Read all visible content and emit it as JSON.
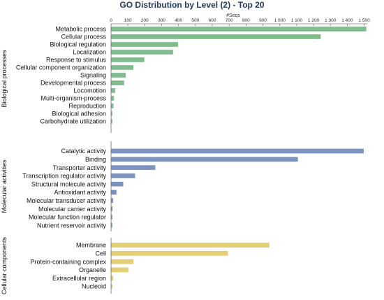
{
  "chart_data": {
    "type": "bar",
    "orientation": "horizontal",
    "title": "GO Distribution by Level (2) - Top 20",
    "xlabel": "#Seqs",
    "ylabel": "",
    "xlim": [
      0,
      1520
    ],
    "xticks": [
      "0",
      "100",
      "200",
      "300",
      "400",
      "500",
      "600",
      "700",
      "800",
      "900",
      "1 000",
      "1 100",
      "1 200",
      "1 300",
      "1 400",
      "1 500"
    ],
    "grid": false,
    "groups": [
      {
        "name": "Biological processes",
        "color": "#7dbf8a",
        "categories": [
          "Metabolic process",
          "Cellular process",
          "Biological regulation",
          "Localization",
          "Response to stimulus",
          "Cellular component organization",
          "Signaling",
          "Developmental process",
          "Locomotion",
          "Multi-organism-process",
          "Reproduction",
          "Biological adhesion",
          "Carbohydrate utilization"
        ],
        "values": [
          1510,
          1240,
          395,
          365,
          195,
          130,
          85,
          75,
          22,
          15,
          12,
          5,
          3
        ]
      },
      {
        "name": "Molecular activities",
        "color": "#7b93c4",
        "categories": [
          "Catalytic activity",
          "Binding",
          "Transporter activity",
          "Transcription regulator activity",
          "Structural molecule activity",
          "Antioxidant activity",
          "Molecular transducer activity",
          "Molecular carrier activity",
          "Molecular function regulator",
          "Nutrient reservoir activity"
        ],
        "values": [
          1495,
          1105,
          260,
          140,
          70,
          30,
          10,
          6,
          4,
          3
        ]
      },
      {
        "name": "Cellular components",
        "color": "#e8cf6e",
        "categories": [
          "Membrane",
          "Cell",
          "Protein-containing complex",
          "Organelle",
          "Extracellular region",
          "Nucleoid"
        ],
        "values": [
          935,
          690,
          130,
          100,
          10,
          4
        ]
      }
    ]
  }
}
